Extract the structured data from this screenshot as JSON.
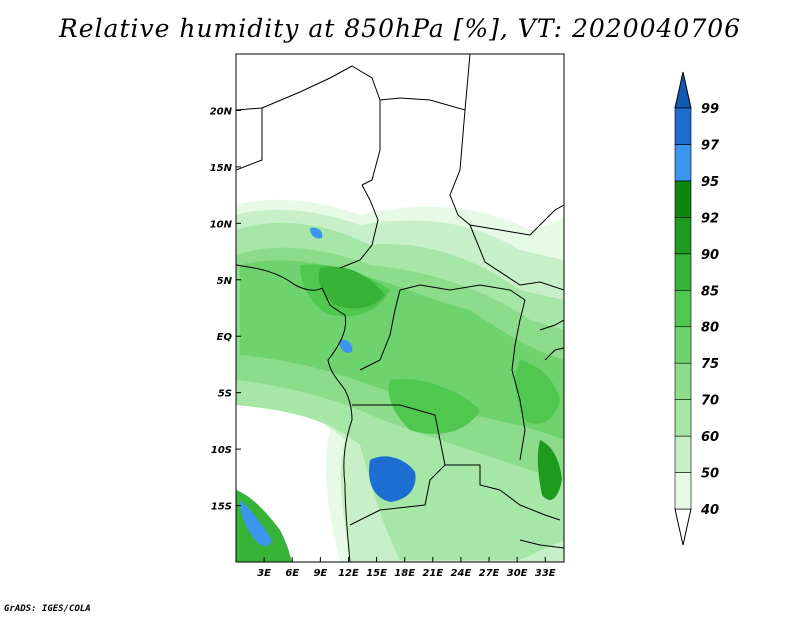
{
  "title": "Relative humidity at 850hPa [%], VT: 2020040706",
  "credit": "GrADS: IGES/COLA",
  "map": {
    "lon_range": [
      0,
      35
    ],
    "lat_range": [
      -20,
      25
    ],
    "x_ticks": [
      {
        "value": 3,
        "label": "3E"
      },
      {
        "value": 6,
        "label": "6E"
      },
      {
        "value": 9,
        "label": "9E"
      },
      {
        "value": 12,
        "label": "12E"
      },
      {
        "value": 15,
        "label": "15E"
      },
      {
        "value": 18,
        "label": "18E"
      },
      {
        "value": 21,
        "label": "21E"
      },
      {
        "value": 24,
        "label": "24E"
      },
      {
        "value": 27,
        "label": "27E"
      },
      {
        "value": 30,
        "label": "30E"
      },
      {
        "value": 33,
        "label": "33E"
      }
    ],
    "y_ticks": [
      {
        "value": 20,
        "label": "20N"
      },
      {
        "value": 15,
        "label": "15N"
      },
      {
        "value": 10,
        "label": "10N"
      },
      {
        "value": 5,
        "label": "5N"
      },
      {
        "value": 0,
        "label": "EQ"
      },
      {
        "value": -5,
        "label": "5S"
      },
      {
        "value": -10,
        "label": "10S"
      },
      {
        "value": -15,
        "label": "15S"
      }
    ]
  },
  "colorbar": {
    "levels": [
      "40",
      "50",
      "60",
      "70",
      "75",
      "80",
      "85",
      "90",
      "92",
      "95",
      "97",
      "99"
    ],
    "colors": [
      "#ffffff",
      "#e6fae6",
      "#c8f0c8",
      "#a6e6a6",
      "#8cdc8c",
      "#6ed26e",
      "#50c850",
      "#37b437",
      "#1e9b1e",
      "#0f870f",
      "#3c96f0",
      "#1e6ed2",
      "#145ab4"
    ]
  }
}
